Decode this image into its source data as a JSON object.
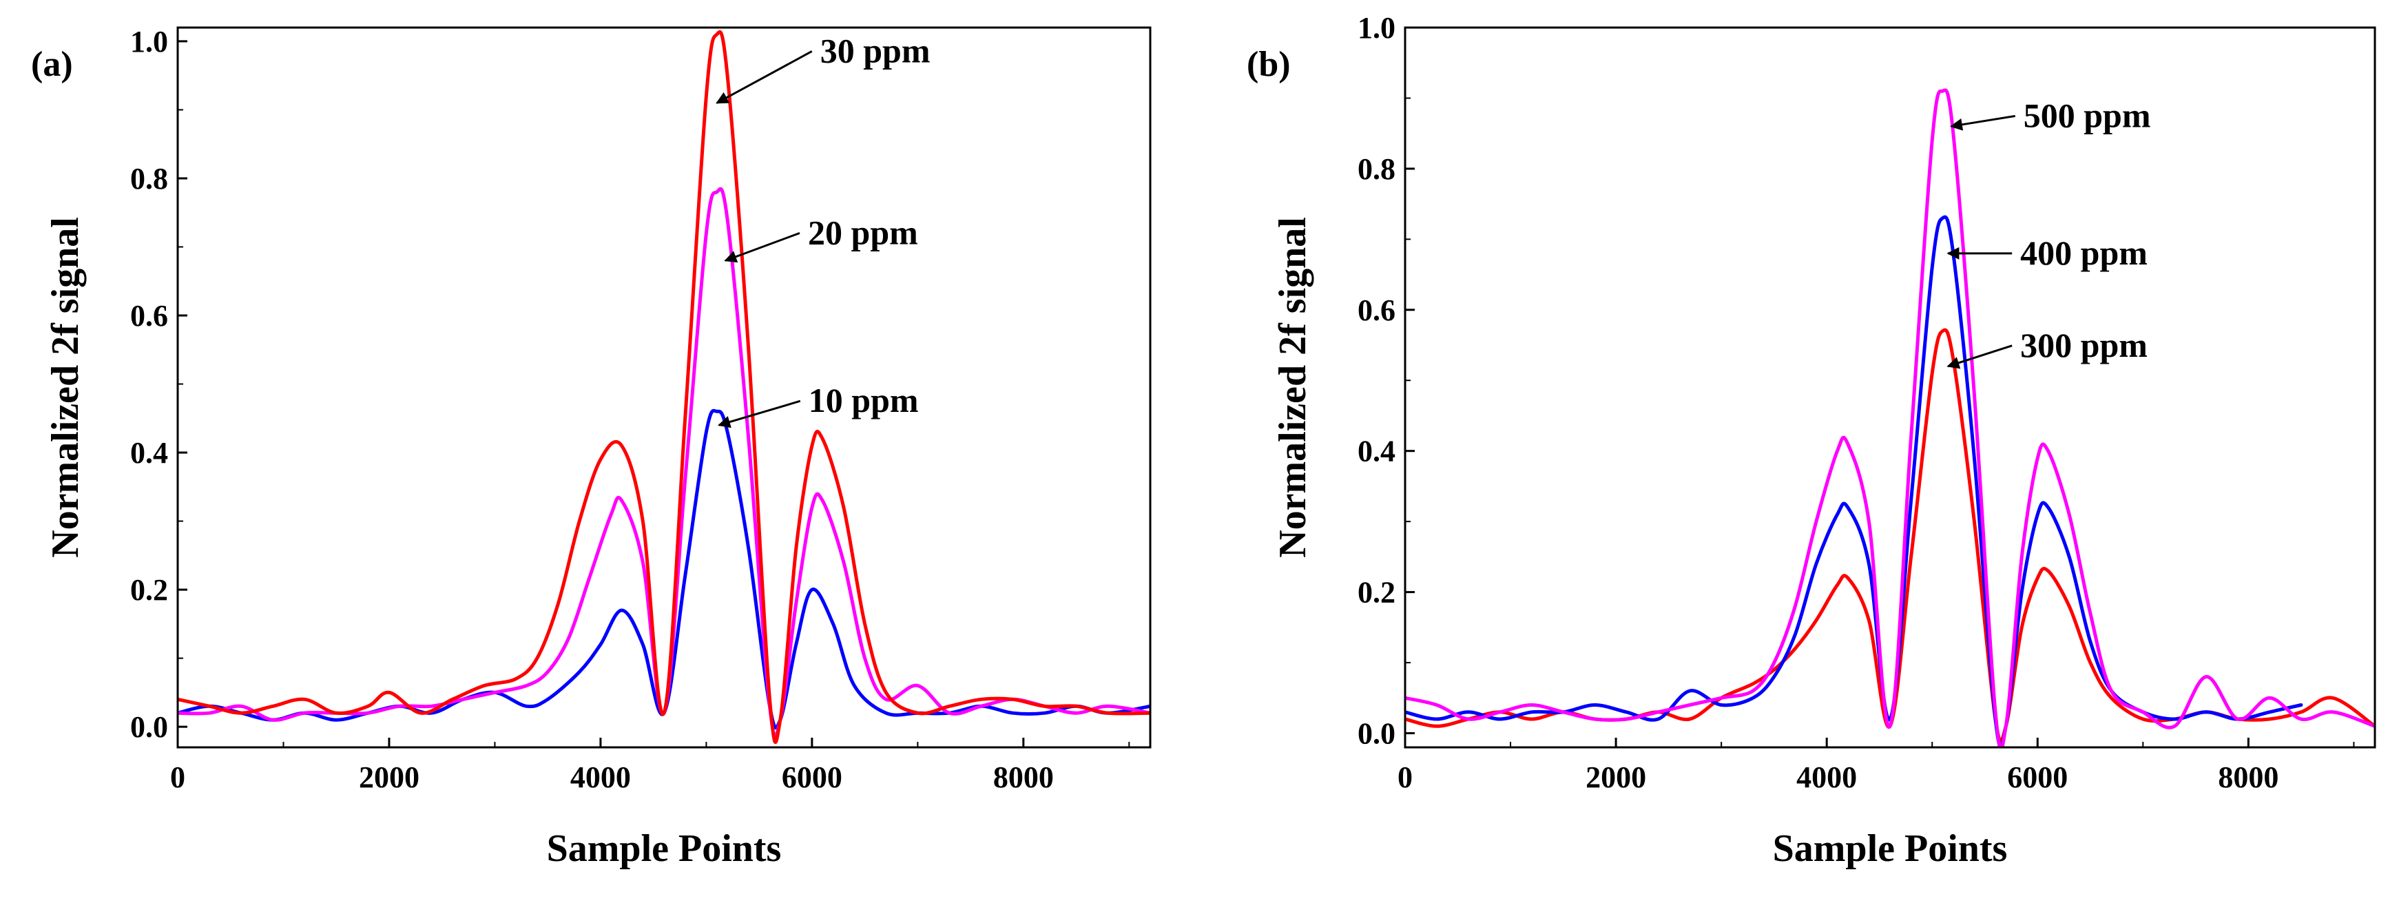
{
  "chart_data": [
    {
      "type": "line",
      "panel_label": "(a)",
      "xlabel": "Sample Points",
      "ylabel": "Normalized 2f signal",
      "xlim": [
        0,
        9200
      ],
      "ylim": [
        -0.03,
        1.02
      ],
      "xticks": [
        0,
        2000,
        4000,
        6000,
        8000
      ],
      "xtick_labels": [
        "0",
        "2000",
        "4000",
        "6000",
        "8000"
      ],
      "yticks": [
        0.0,
        0.2,
        0.4,
        0.6,
        0.8,
        1.0
      ],
      "ytick_labels": [
        "0.0",
        "0.2",
        "0.4",
        "0.6",
        "0.8",
        "1.0"
      ],
      "grid": false,
      "legend": "none",
      "series": [
        {
          "name": "10 ppm",
          "color": "#0000ff",
          "x": [
            0,
            300,
            600,
            900,
            1200,
            1500,
            1800,
            2100,
            2400,
            2700,
            3000,
            3300,
            3500,
            3800,
            4000,
            4200,
            4400,
            4600,
            4800,
            5000,
            5100,
            5200,
            5400,
            5600,
            5700,
            5850,
            6000,
            6200,
            6400,
            6700,
            7000,
            7300,
            7600,
            7900,
            8200,
            8500,
            8800,
            9200
          ],
          "y": [
            0.02,
            0.03,
            0.02,
            0.01,
            0.02,
            0.01,
            0.02,
            0.03,
            0.02,
            0.04,
            0.05,
            0.03,
            0.04,
            0.08,
            0.12,
            0.17,
            0.12,
            0.02,
            0.22,
            0.43,
            0.46,
            0.43,
            0.26,
            0.03,
            0.01,
            0.12,
            0.2,
            0.15,
            0.06,
            0.02,
            0.02,
            0.02,
            0.03,
            0.02,
            0.02,
            0.03,
            0.02,
            0.03
          ]
        },
        {
          "name": "20 ppm",
          "color": "#ff00ff",
          "x": [
            0,
            300,
            600,
            900,
            1200,
            1500,
            1800,
            2100,
            2400,
            2700,
            3000,
            3300,
            3500,
            3700,
            3900,
            4100,
            4200,
            4400,
            4600,
            4800,
            5000,
            5100,
            5200,
            5400,
            5600,
            5700,
            5850,
            6000,
            6100,
            6300,
            6500,
            6700,
            7000,
            7300,
            7600,
            7900,
            8200,
            8500,
            8800,
            9200
          ],
          "y": [
            0.02,
            0.02,
            0.03,
            0.01,
            0.02,
            0.02,
            0.02,
            0.03,
            0.03,
            0.04,
            0.05,
            0.06,
            0.08,
            0.13,
            0.22,
            0.31,
            0.33,
            0.24,
            0.02,
            0.36,
            0.72,
            0.78,
            0.74,
            0.42,
            0.03,
            0.01,
            0.18,
            0.32,
            0.33,
            0.24,
            0.1,
            0.04,
            0.06,
            0.02,
            0.03,
            0.04,
            0.03,
            0.02,
            0.03,
            0.02
          ]
        },
        {
          "name": "30 ppm",
          "color": "#ff0000",
          "x": [
            0,
            300,
            600,
            900,
            1200,
            1500,
            1800,
            2000,
            2300,
            2600,
            2900,
            3200,
            3400,
            3600,
            3800,
            4000,
            4200,
            4400,
            4600,
            4800,
            5000,
            5100,
            5200,
            5400,
            5600,
            5700,
            5850,
            6000,
            6100,
            6300,
            6500,
            6700,
            7000,
            7300,
            7600,
            7900,
            8200,
            8500,
            8800,
            9200
          ],
          "y": [
            0.04,
            0.03,
            0.02,
            0.03,
            0.04,
            0.02,
            0.03,
            0.05,
            0.02,
            0.04,
            0.06,
            0.07,
            0.1,
            0.18,
            0.3,
            0.39,
            0.41,
            0.3,
            0.02,
            0.45,
            0.92,
            1.01,
            0.95,
            0.55,
            0.04,
            0.01,
            0.26,
            0.41,
            0.42,
            0.32,
            0.15,
            0.05,
            0.02,
            0.03,
            0.04,
            0.04,
            0.03,
            0.03,
            0.02,
            0.02
          ]
        }
      ],
      "annotations": [
        {
          "text": "30 ppm",
          "x": 5100,
          "y": 0.91,
          "series": "30 ppm"
        },
        {
          "text": "20 ppm",
          "x": 5180,
          "y": 0.68,
          "series": "20 ppm"
        },
        {
          "text": "10 ppm",
          "x": 5120,
          "y": 0.44,
          "series": "10 ppm"
        }
      ]
    },
    {
      "type": "line",
      "panel_label": "(b)",
      "xlabel": "Sample Points",
      "ylabel": "Normalized 2f signal",
      "xlim": [
        0,
        9200
      ],
      "ylim": [
        -0.02,
        1.0
      ],
      "xticks": [
        0,
        2000,
        4000,
        6000,
        8000
      ],
      "xtick_labels": [
        "0",
        "2000",
        "4000",
        "6000",
        "8000"
      ],
      "yticks": [
        0.0,
        0.2,
        0.4,
        0.6,
        0.8,
        1.0
      ],
      "ytick_labels": [
        "0.0",
        "0.2",
        "0.4",
        "0.6",
        "0.8",
        "1.0"
      ],
      "grid": false,
      "legend": "none",
      "series": [
        {
          "name": "300 ppm",
          "color": "#ff0000",
          "x": [
            0,
            300,
            600,
            900,
            1200,
            1500,
            1800,
            2100,
            2400,
            2700,
            3000,
            3300,
            3500,
            3700,
            3900,
            4100,
            4200,
            4400,
            4600,
            4800,
            5000,
            5100,
            5200,
            5400,
            5600,
            5700,
            5850,
            6000,
            6100,
            6300,
            6500,
            6700,
            7000,
            7300,
            7600,
            7900,
            8200,
            8500,
            8800,
            9200
          ],
          "y": [
            0.02,
            0.01,
            0.02,
            0.03,
            0.02,
            0.03,
            0.02,
            0.02,
            0.03,
            0.02,
            0.05,
            0.07,
            0.09,
            0.12,
            0.16,
            0.21,
            0.22,
            0.16,
            0.01,
            0.25,
            0.51,
            0.57,
            0.53,
            0.3,
            0.02,
            0.01,
            0.15,
            0.22,
            0.23,
            0.18,
            0.1,
            0.05,
            0.02,
            0.02,
            0.03,
            0.02,
            0.02,
            0.03,
            0.05,
            0.01
          ]
        },
        {
          "name": "400 ppm",
          "color": "#0000ff",
          "x": [
            0,
            300,
            600,
            900,
            1200,
            1500,
            1800,
            2100,
            2400,
            2700,
            3000,
            3300,
            3500,
            3700,
            3900,
            4100,
            4200,
            4400,
            4600,
            4800,
            5000,
            5100,
            5200,
            5400,
            5600,
            5700,
            5850,
            6000,
            6100,
            6300,
            6500,
            6700,
            7000,
            7300,
            7600,
            7900,
            8200,
            8500
          ],
          "y": [
            0.03,
            0.02,
            0.03,
            0.02,
            0.03,
            0.03,
            0.04,
            0.03,
            0.02,
            0.06,
            0.04,
            0.05,
            0.08,
            0.14,
            0.24,
            0.31,
            0.32,
            0.24,
            0.02,
            0.33,
            0.66,
            0.73,
            0.68,
            0.39,
            0.02,
            0.01,
            0.2,
            0.31,
            0.32,
            0.25,
            0.13,
            0.06,
            0.03,
            0.02,
            0.03,
            0.02,
            0.03,
            0.04
          ]
        },
        {
          "name": "500 ppm",
          "color": "#ff00ff",
          "x": [
            0,
            300,
            600,
            900,
            1200,
            1500,
            1800,
            2100,
            2400,
            2700,
            3000,
            3300,
            3500,
            3700,
            3900,
            4100,
            4200,
            4400,
            4600,
            4800,
            5000,
            5100,
            5200,
            5400,
            5600,
            5700,
            5850,
            6000,
            6100,
            6300,
            6500,
            6700,
            7000,
            7300,
            7600,
            7900,
            8200,
            8500,
            8800,
            9200
          ],
          "y": [
            0.05,
            0.04,
            0.02,
            0.03,
            0.04,
            0.03,
            0.02,
            0.02,
            0.03,
            0.04,
            0.05,
            0.06,
            0.1,
            0.18,
            0.3,
            0.4,
            0.41,
            0.3,
            0.01,
            0.42,
            0.84,
            0.91,
            0.85,
            0.48,
            0.03,
            0.01,
            0.25,
            0.39,
            0.4,
            0.31,
            0.17,
            0.06,
            0.03,
            0.01,
            0.08,
            0.02,
            0.05,
            0.02,
            0.03,
            0.01
          ]
        }
      ],
      "annotations": [
        {
          "text": "500 ppm",
          "x": 5180,
          "y": 0.86,
          "series": "500 ppm"
        },
        {
          "text": "400 ppm",
          "x": 5150,
          "y": 0.68,
          "series": "400 ppm"
        },
        {
          "text": "300 ppm",
          "x": 5150,
          "y": 0.52,
          "series": "300 ppm"
        }
      ]
    }
  ]
}
